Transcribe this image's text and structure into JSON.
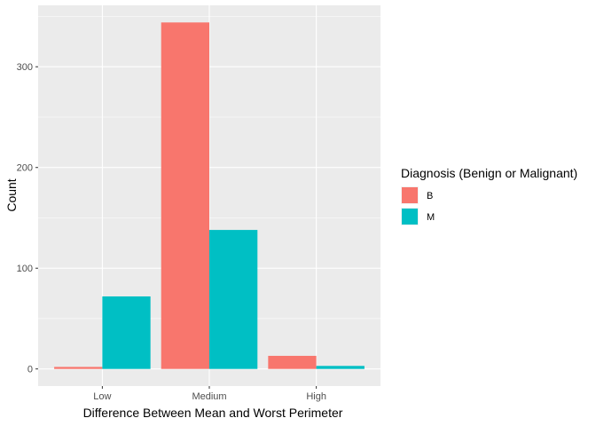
{
  "chart_data": {
    "type": "bar",
    "categories": [
      "Low",
      "Medium",
      "High"
    ],
    "series": [
      {
        "name": "B",
        "color": "#F8766D",
        "values": [
          2,
          344,
          13
        ]
      },
      {
        "name": "M",
        "color": "#00BFC4",
        "values": [
          72,
          138,
          3
        ]
      }
    ],
    "xlabel": "Difference Between Mean and Worst Perimeter",
    "ylabel": "Count",
    "yticks": [
      0,
      100,
      200,
      300
    ],
    "ylim": [
      -17,
      361
    ],
    "grid": true,
    "panel_background": "#EBEBEB",
    "legend": {
      "title": "Diagnosis (Benign or Malignant)",
      "position": "right"
    }
  }
}
